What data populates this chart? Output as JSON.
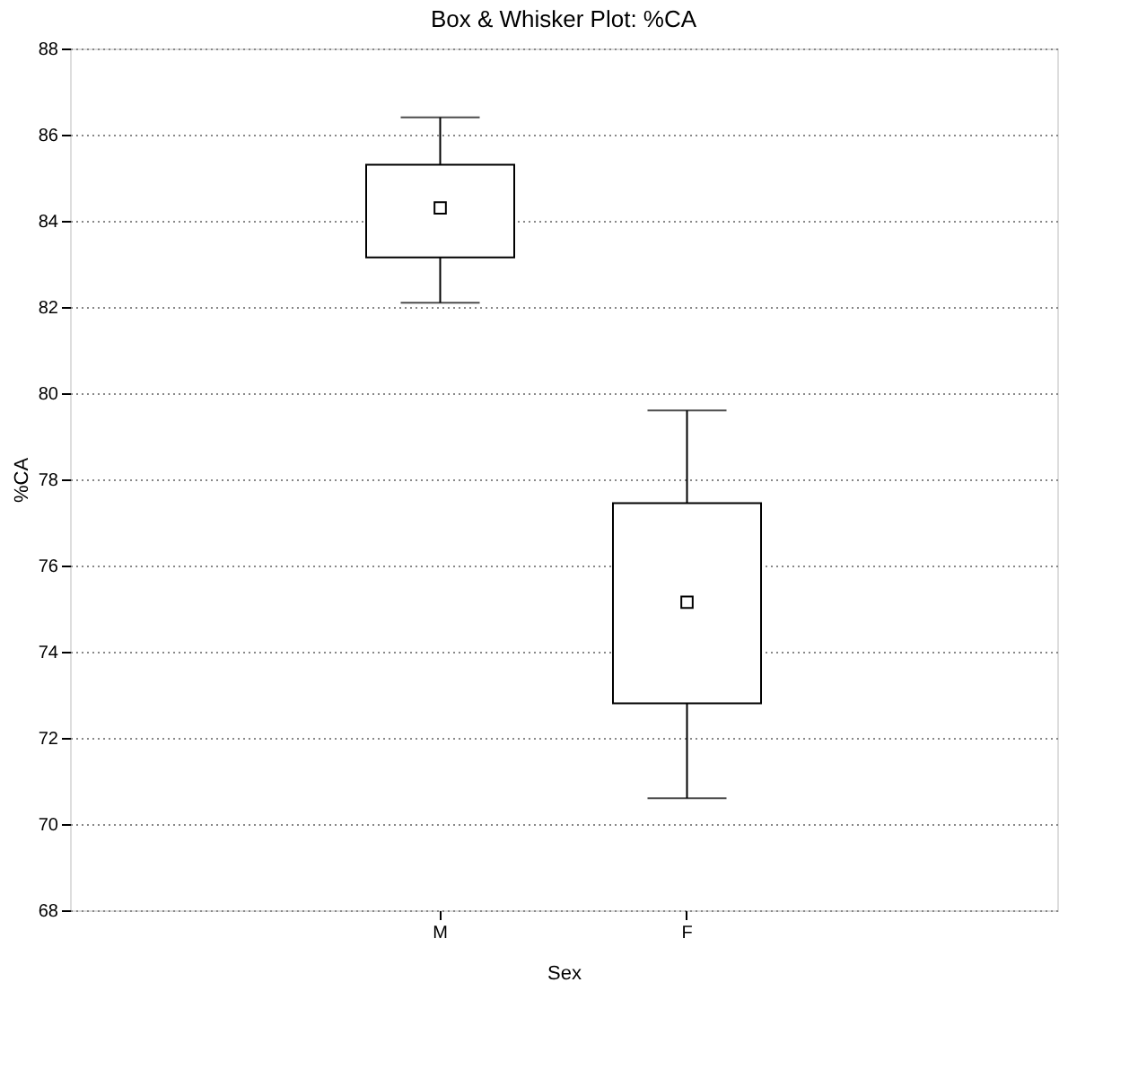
{
  "chart_data": {
    "type": "box",
    "title": "Box & Whisker Plot: %CA",
    "xlabel": "Sex",
    "ylabel": "%CA",
    "categories": [
      "M",
      "F"
    ],
    "boxes": [
      {
        "low": 82.1,
        "q1": 83.15,
        "median": 84.3,
        "q3": 85.3,
        "high": 86.4
      },
      {
        "low": 70.6,
        "q1": 72.8,
        "median": 75.15,
        "q3": 77.45,
        "high": 79.6
      }
    ],
    "ylim": [
      68,
      88
    ],
    "yticks": [
      68,
      70,
      72,
      74,
      76,
      78,
      80,
      82,
      84,
      86,
      88
    ],
    "grid": "y",
    "marker": "square",
    "color": "#000000"
  }
}
